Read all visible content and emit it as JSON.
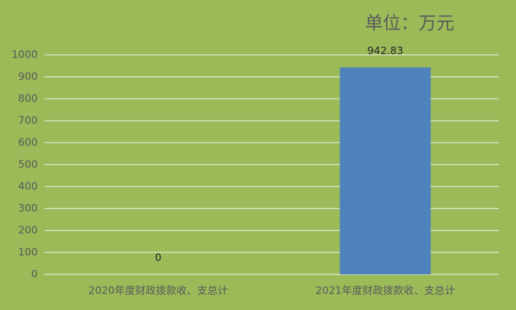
{
  "chart_data": {
    "type": "bar",
    "title": "单位：万元",
    "categories": [
      "2020年度财政拨款收、支总计",
      "2021年度财政拨款收、支总计"
    ],
    "values": [
      0,
      942.83
    ],
    "color": "#4f81bd",
    "ylim": [
      0,
      1000
    ],
    "yticks": [
      0,
      100,
      200,
      300,
      400,
      500,
      600,
      700,
      800,
      900,
      1000
    ],
    "grid": true
  }
}
